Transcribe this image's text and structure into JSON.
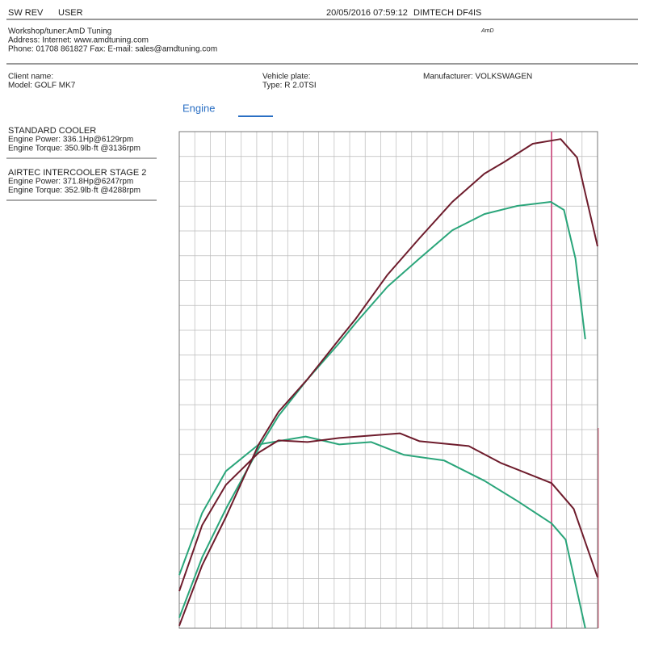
{
  "header": {
    "sw_rev": "SW REV",
    "user": "USER",
    "datetime": "20/05/2016 07:59:12",
    "device": "DIMTECH DF4IS",
    "logo": "AmD",
    "workshop": "Workshop/tuner:AmD Tuning",
    "address": "Address:  Internet: www.amdtuning.com",
    "phone": "Phone: 01708 861827 Fax:  E-mail: sales@amdtuning.com"
  },
  "client": {
    "client_name": "Client name:",
    "model": "Model: GOLF MK7",
    "vehicle_plate": "Vehicle plate:",
    "type": "Type: R 2.0TSI",
    "manufacturer": "Manufacturer: VOLKSWAGEN"
  },
  "chart_data": {
    "type": "line",
    "title": "Engine",
    "xlim": [
      1600,
      6700
    ],
    "ylim": [
      94,
      376
    ],
    "y2lim": [
      232,
      540
    ],
    "cursor": 6140,
    "grid": true,
    "series": [
      {
        "name": "STANDARD COOLER",
        "color": "#2aa57a",
        "power_text": "Engine Power: 336.1Hp@6129rpm",
        "torque_text": "Engine Torque: 350.9lb·ft @3136rpm",
        "power": {
          "x": [
            1600,
            1880,
            2170,
            2570,
            2810,
            3160,
            3550,
            3750,
            4140,
            4530,
            4930,
            5320,
            5720,
            6130,
            6290,
            6430,
            6550
          ],
          "values": [
            100,
            134.3,
            161.9,
            196.2,
            214.6,
            235.2,
            255.9,
            267.3,
            288,
            304,
            320,
            329.2,
            333.8,
            336.1,
            331.5,
            304,
            258.1
          ]
        },
        "torque": {
          "x": [
            1600,
            1880,
            2170,
            2570,
            3140,
            3550,
            3940,
            4340,
            4830,
            5320,
            5720,
            6140,
            6310,
            6550
          ],
          "values": [
            265,
            303.5,
            329.5,
            346,
            350.9,
            346,
            347.5,
            339.5,
            336,
            323.5,
            311,
            297,
            287,
            232
          ],
          "axis": "y2"
        }
      },
      {
        "name": "AIRTEC INTERCOOLER STAGE 2",
        "color": "#6e1c2c",
        "power_text": "Engine Power: 371.8Hp@6247rpm",
        "torque_text": "Engine Torque: 352.9lb·ft @4288rpm",
        "power": {
          "x": [
            1600,
            1880,
            2170,
            2570,
            2810,
            3160,
            3550,
            3750,
            4140,
            4530,
            4930,
            5320,
            5570,
            5910,
            6250,
            6450,
            6700
          ],
          "values": [
            95.4,
            129.8,
            157.3,
            198.5,
            216.9,
            235.2,
            258.1,
            269.6,
            294.8,
            315.5,
            336.1,
            352.1,
            359,
            369.1,
            371.8,
            361.3,
            310.9
          ]
        },
        "torque": {
          "x": [
            1600,
            1880,
            2170,
            2570,
            2810,
            3160,
            3550,
            4290,
            4530,
            5130,
            5520,
            6140,
            6410,
            6700
          ],
          "values": [
            255,
            296,
            321,
            341,
            348.5,
            347.5,
            350,
            352.9,
            348,
            345,
            334.5,
            322,
            306,
            263.5
          ],
          "axis": "y2"
        }
      }
    ]
  }
}
